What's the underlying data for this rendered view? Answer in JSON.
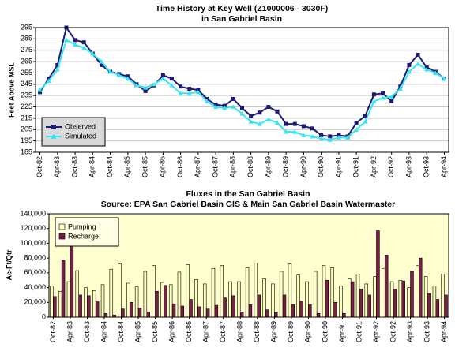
{
  "chart_data": [
    {
      "type": "line",
      "title": "Time History at Key Well (Z1000006 - 3030F)",
      "subtitle": "in San Gabriel Basin",
      "y_label": "Feet Above MSL",
      "categories": [
        "Oct-82",
        null,
        "Apr-83",
        null,
        "Oct-83",
        null,
        "Apr-84",
        null,
        "Oct-84",
        null,
        "Apr-85",
        null,
        "Oct-85",
        null,
        "Apr-86",
        null,
        "Oct-86",
        null,
        "Apr-87",
        null,
        "Oct-87",
        null,
        "Apr-88",
        null,
        "Oct-88",
        null,
        "Apr-89",
        null,
        "Oct-89",
        null,
        "Apr-90",
        null,
        "Oct-90",
        null,
        "Apr-91",
        null,
        "Oct-91",
        null,
        "Apr-92",
        null,
        "Oct-92",
        null,
        "Apr-93",
        null,
        "Oct-93",
        null,
        "Apr-94"
      ],
      "series": [
        {
          "name": "Observed",
          "color": "#1c1c78",
          "marker": "square",
          "values": [
            238,
            250,
            262,
            295,
            284,
            282,
            272,
            262,
            256,
            254,
            252,
            245,
            239,
            244,
            253,
            250,
            243,
            241,
            240,
            232,
            227,
            226,
            232,
            224,
            217,
            220,
            225,
            221,
            210,
            210,
            208,
            206,
            200,
            199,
            200,
            199,
            211,
            217,
            236,
            237,
            230,
            243,
            262,
            271,
            260,
            256,
            250
          ]
        },
        {
          "name": "Simulated",
          "color": "#33e6f0",
          "marker": "triangle",
          "values": [
            240,
            248,
            258,
            284,
            280,
            277,
            272,
            265,
            256,
            253,
            250,
            244,
            242,
            245,
            250,
            244,
            237,
            237,
            238,
            230,
            225,
            224,
            225,
            219,
            212,
            210,
            214,
            211,
            203,
            203,
            200,
            199,
            197,
            196,
            198,
            198,
            205,
            212,
            230,
            233,
            234,
            241,
            256,
            263,
            258,
            255,
            250
          ]
        }
      ],
      "ylim": [
        185,
        295
      ],
      "yticks": [
        185,
        195,
        205,
        215,
        225,
        235,
        245,
        255,
        265,
        275,
        285,
        295
      ],
      "grid": true,
      "plot_background": "#ffffff",
      "legend": "lower left"
    },
    {
      "type": "bar",
      "title": "Fluxes in the San Gabriel Basin",
      "subtitle": "Source: EPA San Gabriel Basin GIS & Main San Gabriel Basin Watermaster",
      "y_label": "Ac-Ft/Qtr",
      "categories": [
        "Oct-82",
        null,
        "Apr-83",
        null,
        "Oct-83",
        null,
        "Apr-84",
        null,
        "Oct-84",
        null,
        "Apr-85",
        null,
        "Oct-85",
        null,
        "Apr-86",
        null,
        "Oct-86",
        null,
        "Apr-87",
        null,
        "Oct-87",
        null,
        "Apr-88",
        null,
        "Oct-88",
        null,
        "Apr-89",
        null,
        "Oct-89",
        null,
        "Apr-90",
        null,
        "Oct-90",
        null,
        "Apr-91",
        null,
        "Oct-91",
        null,
        "Apr-92",
        null,
        "Oct-92",
        null,
        "Apr-93",
        null,
        "Oct-93",
        null,
        "Apr-94"
      ],
      "series": [
        {
          "name": "Pumping",
          "color": "#ffffc0",
          "values": [
            42000,
            35000,
            48000,
            63000,
            40000,
            36000,
            44000,
            65000,
            72000,
            46000,
            41000,
            62000,
            70000,
            47000,
            44000,
            61000,
            71000,
            51000,
            45000,
            66000,
            70000,
            48000,
            48000,
            67000,
            73000,
            52000,
            45000,
            62000,
            72000,
            57000,
            48000,
            62000,
            70000,
            67000,
            42000,
            52000,
            58000,
            45000,
            55000,
            66000,
            48000,
            50000,
            40000,
            70000,
            55000,
            42000,
            58000
          ]
        },
        {
          "name": "Recharge",
          "color": "#7a1f4a",
          "values": [
            28000,
            77000,
            103000,
            30000,
            29000,
            22000,
            5000,
            3000,
            11000,
            20000,
            12000,
            7000,
            35000,
            43000,
            18000,
            15000,
            24000,
            14000,
            11000,
            16000,
            26000,
            29000,
            7000,
            17000,
            30000,
            10000,
            6000,
            30000,
            17000,
            22000,
            17000,
            5000,
            50000,
            20000,
            5000,
            48000,
            38000,
            30000,
            117000,
            84000,
            38000,
            49000,
            62000,
            80000,
            32000,
            24000,
            30000
          ]
        }
      ],
      "ylim": [
        0,
        140000
      ],
      "yticks": [
        0,
        {
          "value": 20000,
          "label": "20,000"
        },
        {
          "value": 40000,
          "label": "40,000"
        },
        {
          "value": 60000,
          "label": "60,000"
        },
        {
          "value": 80000,
          "label": "80,000"
        },
        {
          "value": 100000,
          "label": "100,000"
        },
        {
          "value": 120000,
          "label": "120,000"
        },
        {
          "value": 140000,
          "label": "140,000"
        }
      ],
      "grid": false,
      "plot_background": "#ffffd0",
      "legend": "upper left"
    }
  ]
}
